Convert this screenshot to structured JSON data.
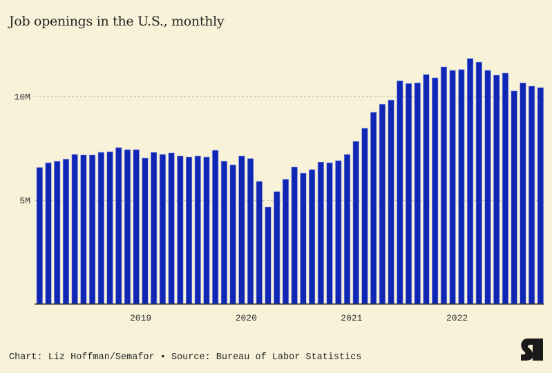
{
  "title": "Job openings in the U.S., monthly",
  "footer": {
    "credit": "Chart: Liz Hoffman/Semafor",
    "separator": "•",
    "source": "Source: Bureau of Labor Statistics"
  },
  "logo": {
    "icon": "semafor-s-logo",
    "text": "S"
  },
  "colors": {
    "background": "#f8f2d9",
    "bar": "#0f27b4",
    "grid": "#b9b3a0",
    "axis": "#333333"
  },
  "chart_data": {
    "type": "bar",
    "title": "Job openings in the U.S., monthly",
    "xlabel": "",
    "ylabel": "",
    "ylim": [
      0,
      12.5
    ],
    "y_unit": "millions",
    "yticks": [
      {
        "value": 5,
        "label": "5M"
      },
      {
        "value": 10,
        "label": "10M"
      }
    ],
    "xticks": [
      {
        "index": 12,
        "label": "2019"
      },
      {
        "index": 24,
        "label": "2020"
      },
      {
        "index": 36,
        "label": "2021"
      },
      {
        "index": 48,
        "label": "2022"
      }
    ],
    "grid": "horizontal dashed",
    "legend": "none",
    "categories": [
      "2018-01",
      "2018-02",
      "2018-03",
      "2018-04",
      "2018-05",
      "2018-06",
      "2018-07",
      "2018-08",
      "2018-09",
      "2018-10",
      "2018-11",
      "2018-12",
      "2019-01",
      "2019-02",
      "2019-03",
      "2019-04",
      "2019-05",
      "2019-06",
      "2019-07",
      "2019-08",
      "2019-09",
      "2019-10",
      "2019-11",
      "2019-12",
      "2020-01",
      "2020-02",
      "2020-03",
      "2020-04",
      "2020-05",
      "2020-06",
      "2020-07",
      "2020-08",
      "2020-09",
      "2020-10",
      "2020-11",
      "2020-12",
      "2021-01",
      "2021-02",
      "2021-03",
      "2021-04",
      "2021-05",
      "2021-06",
      "2021-07",
      "2021-08",
      "2021-09",
      "2021-10",
      "2021-11",
      "2021-12",
      "2022-01",
      "2022-02",
      "2022-03",
      "2022-04",
      "2022-05",
      "2022-06",
      "2022-07",
      "2022-08",
      "2022-09",
      "2022-10"
    ],
    "values": [
      6.58,
      6.81,
      6.88,
      6.98,
      7.21,
      7.18,
      7.18,
      7.31,
      7.34,
      7.54,
      7.44,
      7.44,
      7.04,
      7.31,
      7.21,
      7.28,
      7.14,
      7.08,
      7.14,
      7.08,
      7.41,
      6.88,
      6.71,
      7.14,
      7.01,
      5.91,
      4.68,
      5.42,
      6.01,
      6.61,
      6.31,
      6.48,
      6.84,
      6.81,
      6.91,
      7.21,
      7.84,
      8.47,
      9.24,
      9.63,
      9.83,
      10.76,
      10.63,
      10.66,
      11.06,
      10.9,
      11.43,
      11.26,
      11.3,
      11.83,
      11.66,
      11.26,
      11.03,
      11.13,
      10.27,
      10.66,
      10.5,
      10.43
    ]
  }
}
